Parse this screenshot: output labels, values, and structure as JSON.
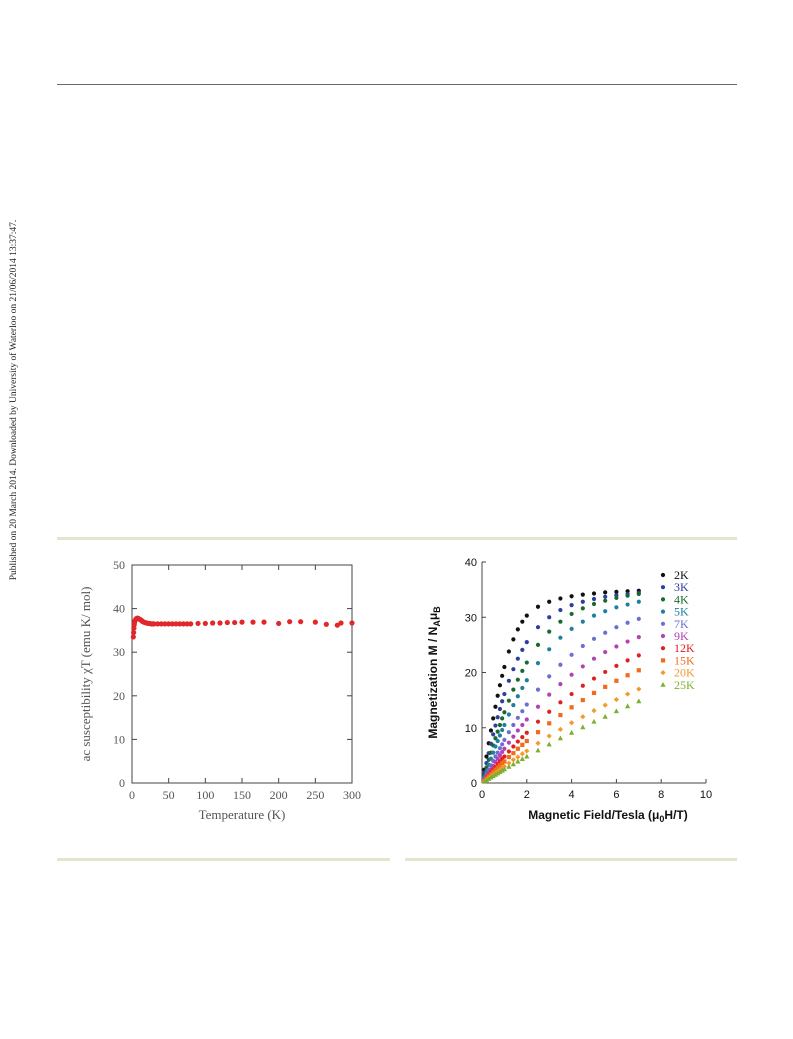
{
  "sidebar_note": "Published on 20 March 2014. Downloaded by University of Waterloo on 21/06/2014 13:37:47.",
  "chart_data": [
    {
      "type": "scatter",
      "title": "",
      "xlabel": "Temperature (K)",
      "ylabel": "ac susceptibility χT (emu K/ mol)",
      "xlim": [
        0,
        300
      ],
      "ylim": [
        0,
        50
      ],
      "xticks": [
        "0",
        "50",
        "100",
        "150",
        "200",
        "250",
        "300"
      ],
      "yticks": [
        "0",
        "10",
        "20",
        "30",
        "40",
        "50"
      ],
      "grid": false,
      "marker_color": "#e0282a",
      "series": [
        {
          "x": [
            1.8,
            2.2,
            2.6,
            3,
            3.5,
            4,
            5,
            6,
            7,
            8,
            9,
            10,
            11,
            12,
            13,
            14,
            15,
            16,
            18,
            20,
            22,
            24,
            26,
            28,
            30,
            35,
            40,
            45,
            50,
            55,
            60,
            65,
            70,
            75,
            80,
            90,
            100,
            110,
            120,
            130,
            140,
            150,
            165,
            180,
            200,
            215,
            230,
            250,
            265,
            280,
            285,
            300
          ],
          "y": [
            33.5,
            34.5,
            35.5,
            36.3,
            36.8,
            37.2,
            37.5,
            37.7,
            37.8,
            37.8,
            37.7,
            37.6,
            37.5,
            37.4,
            37.3,
            37.1,
            37,
            36.9,
            36.8,
            36.7,
            36.6,
            36.6,
            36.5,
            36.5,
            36.5,
            36.5,
            36.5,
            36.5,
            36.5,
            36.5,
            36.5,
            36.5,
            36.5,
            36.5,
            36.5,
            36.6,
            36.6,
            36.7,
            36.7,
            36.8,
            36.8,
            36.9,
            36.9,
            36.9,
            36.6,
            37,
            37,
            36.9,
            36.4,
            36.2,
            36.7,
            36.7
          ]
        }
      ]
    },
    {
      "type": "scatter",
      "title": "",
      "xlabel": "Magnetic Field/Tesla (μ",
      "xlabel_sub": "0",
      "xlabel_tail": "H/T)",
      "ylabel": "Magnetization M / N",
      "ylabel_sub1": "A",
      "ylabel_mid": "μ",
      "ylabel_sub2": "B",
      "xlim": [
        0,
        10
      ],
      "ylim": [
        0,
        40
      ],
      "xticks": [
        "0",
        "2",
        "4",
        "6",
        "8",
        "10"
      ],
      "yticks": [
        "0",
        "10",
        "20",
        "30",
        "40"
      ],
      "grid": false,
      "legend_position": "top-right",
      "x": [
        0.1,
        0.2,
        0.3,
        0.4,
        0.5,
        0.6,
        0.7,
        0.8,
        0.9,
        1,
        1.2,
        1.4,
        1.6,
        1.8,
        2,
        2.5,
        3,
        3.5,
        4,
        4.5,
        5,
        5.5,
        6,
        6.5,
        7
      ],
      "series": [
        {
          "name": "2K",
          "color": "#111111",
          "marker": "circle",
          "values": [
            2.4,
            4.8,
            7.2,
            9.5,
            11.7,
            13.8,
            15.8,
            17.7,
            19.4,
            21,
            23.8,
            26,
            27.8,
            29.2,
            30.3,
            31.9,
            32.8,
            33.4,
            33.8,
            34.1,
            34.3,
            34.5,
            34.6,
            34.7,
            34.8
          ]
        },
        {
          "name": "3K",
          "color": "#2f3da0",
          "marker": "circle",
          "values": [
            1.8,
            3.6,
            5.4,
            7.1,
            8.8,
            10.4,
            11.9,
            13.4,
            14.8,
            16.1,
            18.5,
            20.6,
            22.5,
            24.1,
            25.5,
            28.2,
            30,
            31.3,
            32.2,
            32.8,
            33.3,
            33.7,
            34,
            34.2,
            34.4
          ]
        },
        {
          "name": "4K",
          "color": "#186b2c",
          "marker": "circle",
          "values": [
            1.4,
            2.8,
            4.2,
            5.5,
            6.8,
            8.1,
            9.3,
            10.5,
            11.7,
            12.8,
            14.9,
            16.9,
            18.7,
            20.3,
            21.8,
            25,
            27.4,
            29.2,
            30.6,
            31.6,
            32.4,
            33,
            33.5,
            33.9,
            34.2
          ]
        },
        {
          "name": "5K",
          "color": "#1e7fa0",
          "marker": "circle",
          "values": [
            1.1,
            2.2,
            3.3,
            4.4,
            5.5,
            6.6,
            7.6,
            8.6,
            9.6,
            10.5,
            12.4,
            14.1,
            15.7,
            17.2,
            18.6,
            21.7,
            24.2,
            26.3,
            27.9,
            29.2,
            30.3,
            31.1,
            31.8,
            32.3,
            32.8
          ]
        },
        {
          "name": "7K",
          "color": "#6a6fd0",
          "marker": "circle",
          "values": [
            0.8,
            1.6,
            2.4,
            3.2,
            4,
            4.8,
            5.5,
            6.3,
            7,
            7.8,
            9.2,
            10.5,
            11.8,
            13,
            14.2,
            16.9,
            19.3,
            21.4,
            23.2,
            24.8,
            26.1,
            27.2,
            28.2,
            29,
            29.7
          ]
        },
        {
          "name": "9K",
          "color": "#b243b5",
          "marker": "circle",
          "values": [
            0.6,
            1.3,
            1.9,
            2.5,
            3.1,
            3.8,
            4.4,
            5,
            5.6,
            6.2,
            7.3,
            8.4,
            9.5,
            10.5,
            11.5,
            13.8,
            16,
            17.9,
            19.6,
            21.1,
            22.5,
            23.7,
            24.7,
            25.6,
            26.4
          ]
        },
        {
          "name": "12K",
          "color": "#e02020",
          "marker": "circle",
          "values": [
            0.5,
            1,
            1.5,
            2,
            2.4,
            2.9,
            3.4,
            3.9,
            4.4,
            4.8,
            5.7,
            6.6,
            7.5,
            8.3,
            9.1,
            11.1,
            12.9,
            14.6,
            16.1,
            17.6,
            18.9,
            20.1,
            21.2,
            22.2,
            23.1
          ]
        },
        {
          "name": "15K",
          "color": "#f06b1c",
          "marker": "square",
          "values": [
            0.4,
            0.8,
            1.2,
            1.6,
            2,
            2.4,
            2.8,
            3.2,
            3.6,
            3.9,
            4.7,
            5.4,
            6.2,
            6.9,
            7.6,
            9.2,
            10.8,
            12.3,
            13.7,
            15,
            16.3,
            17.4,
            18.5,
            19.5,
            20.4
          ]
        },
        {
          "name": "20K",
          "color": "#f29a2e",
          "marker": "diamond",
          "values": [
            0.3,
            0.6,
            0.9,
            1.2,
            1.5,
            1.8,
            2.1,
            2.4,
            2.7,
            3,
            3.6,
            4.2,
            4.7,
            5.3,
            5.8,
            7.2,
            8.5,
            9.7,
            10.9,
            12,
            13.1,
            14.1,
            15.1,
            16.1,
            17
          ]
        },
        {
          "name": "25K",
          "color": "#7fae2f",
          "marker": "triangle",
          "values": [
            0.25,
            0.5,
            0.75,
            1,
            1.25,
            1.5,
            1.75,
            2,
            2.25,
            2.5,
            2.95,
            3.4,
            3.9,
            4.35,
            4.8,
            5.9,
            7,
            8.1,
            9.1,
            10.1,
            11.1,
            12,
            13,
            13.9,
            14.8
          ]
        }
      ]
    }
  ]
}
